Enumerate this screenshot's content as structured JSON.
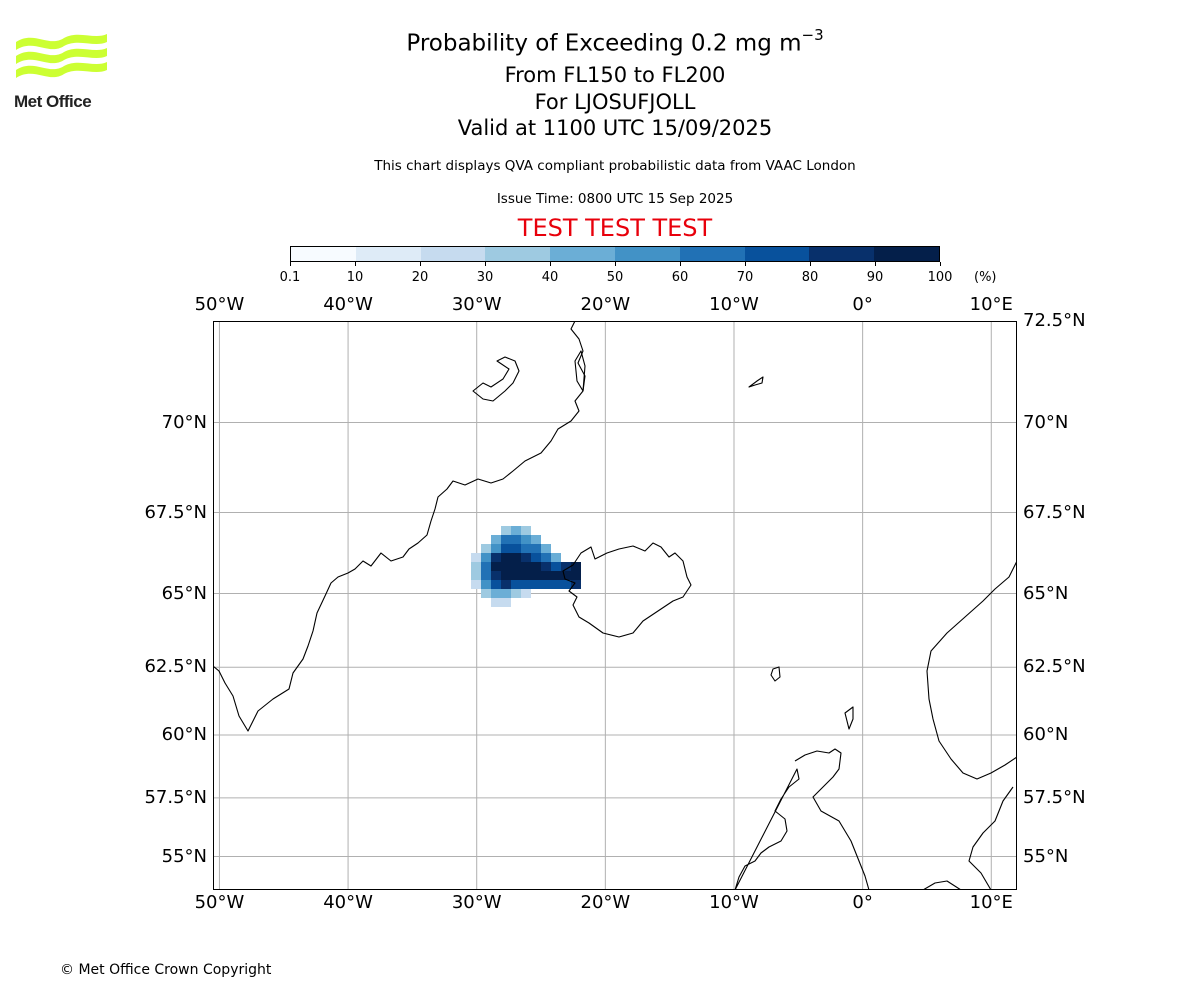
{
  "logo": {
    "text": "Met Office",
    "icon": "met-office-wave-logo",
    "color": "#ccff33"
  },
  "title": {
    "main": "Probability of Exceeding 0.2 mg m",
    "main_sup": "−3",
    "flight_levels": "From FL150 to FL200",
    "location": "For LJOSUFJOLL",
    "valid": "Valid at 1100 UTC 15/09/2025"
  },
  "subtitle": "This chart displays QVA compliant probabilistic data from VAAC London",
  "issue_time": "Issue Time: 0800 UTC 15 Sep 2025",
  "test_banner": {
    "text": "TEST TEST TEST",
    "color": "#e8000b"
  },
  "colorbar": {
    "unit": "(%)",
    "ticks": [
      "0.1",
      "10",
      "20",
      "30",
      "40",
      "50",
      "60",
      "70",
      "80",
      "90",
      "100"
    ],
    "colors": [
      "#f7fbff",
      "#deebf7",
      "#c6dbef",
      "#9ecae1",
      "#6baed6",
      "#4292c6",
      "#2171b5",
      "#08519c",
      "#08306b",
      "#041f4a"
    ]
  },
  "map": {
    "lon_range": [
      -50.5,
      12
    ],
    "lat_range": [
      53.5,
      72.5
    ],
    "projection": "Mercator",
    "grid": true,
    "lon_labels": [
      "50°W",
      "40°W",
      "30°W",
      "20°W",
      "10°W",
      "0°",
      "10°E"
    ],
    "lat_labels_left": [
      "70°N",
      "67.5°N",
      "65°N",
      "62.5°N",
      "60°N",
      "57.5°N",
      "55°N"
    ],
    "lat_labels_right": [
      "72.5°N",
      "70°N",
      "67.5°N",
      "65°N",
      "62.5°N",
      "60°N",
      "57.5°N",
      "55°N"
    ]
  },
  "copyright": "© Met Office Crown Copyright"
}
